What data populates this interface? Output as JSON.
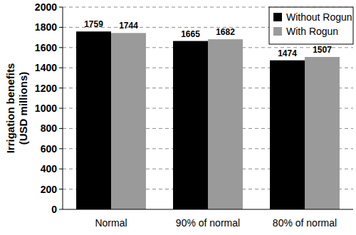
{
  "chart_data": {
    "type": "bar",
    "y_label": [
      "Irrigation benefits",
      "(USD millions)"
    ],
    "categories": [
      "Normal",
      "90% of normal",
      "80% of normal"
    ],
    "series": [
      {
        "name": "Without Rogun",
        "color": "#000000",
        "values": [
          1759,
          1665,
          1474
        ]
      },
      {
        "name": "With Rogun",
        "color": "#9a9a9a",
        "values": [
          1744,
          1682,
          1507
        ]
      }
    ],
    "ylim": [
      0,
      2000
    ],
    "yticks": [
      0,
      200,
      400,
      600,
      800,
      1000,
      1200,
      1400,
      1600,
      1800,
      2000
    ],
    "grid": true,
    "legend": "upper right",
    "data_labels": true
  }
}
